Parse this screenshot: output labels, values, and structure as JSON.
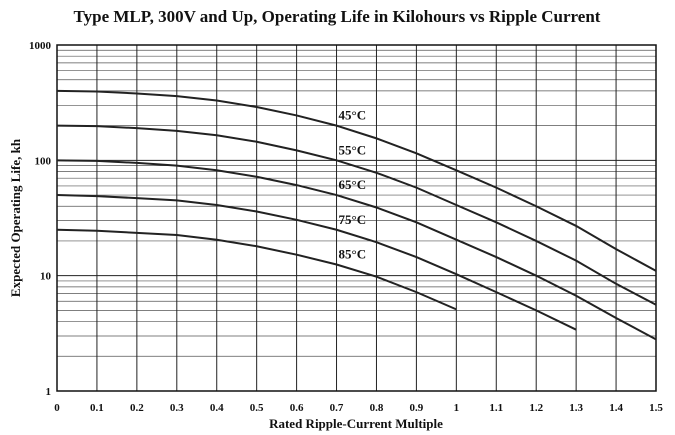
{
  "chart_data": {
    "type": "line",
    "title": "Type MLP, 300V and Up, Operating Life in Kilohours vs Ripple Current",
    "x_label": "Rated Ripple-Current Multiple",
    "y_label": "Expected Operating Life, kh",
    "x": [
      0,
      0.1,
      0.2,
      0.3,
      0.4,
      0.5,
      0.6,
      0.7,
      0.8,
      0.9,
      1,
      1.1,
      1.2,
      1.3,
      1.4,
      1.5
    ],
    "series": [
      {
        "name": "45°C",
        "color": "#222222",
        "values": [
          400,
          395,
          380,
          360,
          330,
          290,
          245,
          200,
          155,
          115,
          82,
          58,
          40,
          27,
          17,
          11
        ]
      },
      {
        "name": "55°C",
        "color": "#222222",
        "values": [
          200,
          198,
          190,
          180,
          165,
          145,
          122,
          100,
          78,
          58,
          41,
          29,
          20,
          13.5,
          8.5,
          5.6
        ]
      },
      {
        "name": "65°C",
        "color": "#222222",
        "values": [
          100,
          99,
          95,
          90,
          82,
          72,
          61,
          50,
          39,
          29,
          20.5,
          14.5,
          10,
          6.7,
          4.3,
          2.8
        ]
      },
      {
        "name": "75°C",
        "color": "#222222",
        "values": [
          50,
          49,
          47,
          45,
          41,
          36,
          30.5,
          25,
          19.5,
          14.5,
          10.3,
          7.2,
          5,
          3.4,
          null,
          null
        ]
      },
      {
        "name": "85°C",
        "color": "#222222",
        "values": [
          25,
          24.5,
          23.5,
          22.5,
          20.5,
          18,
          15.2,
          12.5,
          9.8,
          7.2,
          5.1,
          null,
          null,
          null,
          null,
          null
        ]
      }
    ],
    "xlim": [
      0,
      1.5
    ],
    "xticks": [
      0,
      0.1,
      0.2,
      0.3,
      0.4,
      0.5,
      0.6,
      0.7,
      0.8,
      0.9,
      1,
      1.1,
      1.2,
      1.3,
      1.4,
      1.5
    ],
    "ylim": [
      1,
      1000
    ],
    "yticks": [
      1,
      10,
      100,
      1000
    ],
    "y_log": true,
    "grid": true,
    "minor_grid": true
  }
}
